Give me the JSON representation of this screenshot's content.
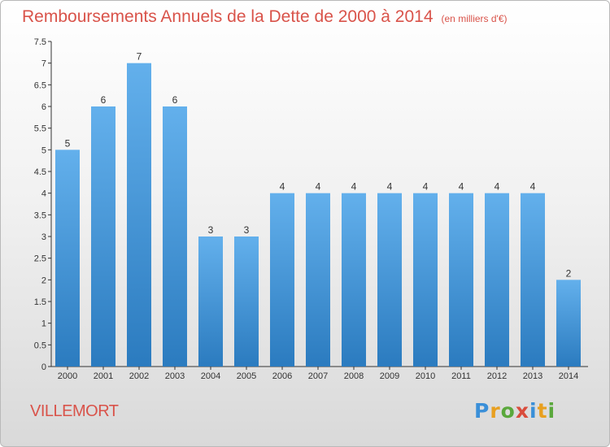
{
  "title": "Remboursements Annuels de la Dette de 2000 à 2014",
  "subtitle": "(en milliers d'€)",
  "place": "VILLEMORT",
  "logo": {
    "letters": [
      "P",
      "r",
      "o",
      "x",
      "i",
      "t",
      "i"
    ],
    "colors": [
      "#3a8fd8",
      "#e8a020",
      "#5aa83c",
      "#d94c3c",
      "#3a8fd8",
      "#e8a020",
      "#5aa83c"
    ]
  },
  "colors": {
    "accent": "#d9534a",
    "bar_top": "#63b0ec",
    "bar_bottom": "#2b7bbf"
  },
  "chart_data": {
    "type": "bar",
    "categories": [
      "2000",
      "2001",
      "2002",
      "2003",
      "2004",
      "2005",
      "2006",
      "2007",
      "2008",
      "2009",
      "2010",
      "2011",
      "2012",
      "2013",
      "2014"
    ],
    "values": [
      5,
      6,
      7,
      6,
      3,
      3,
      4,
      4,
      4,
      4,
      4,
      4,
      4,
      4,
      2
    ],
    "ylim": [
      0,
      7.5
    ],
    "yticks": [
      "0",
      "0.5",
      "1",
      "1.5",
      "2",
      "2.5",
      "3",
      "3.5",
      "4",
      "4.5",
      "5",
      "5.5",
      "6",
      "6.5",
      "7",
      "7.5"
    ],
    "grid": false,
    "data_labels": true
  }
}
